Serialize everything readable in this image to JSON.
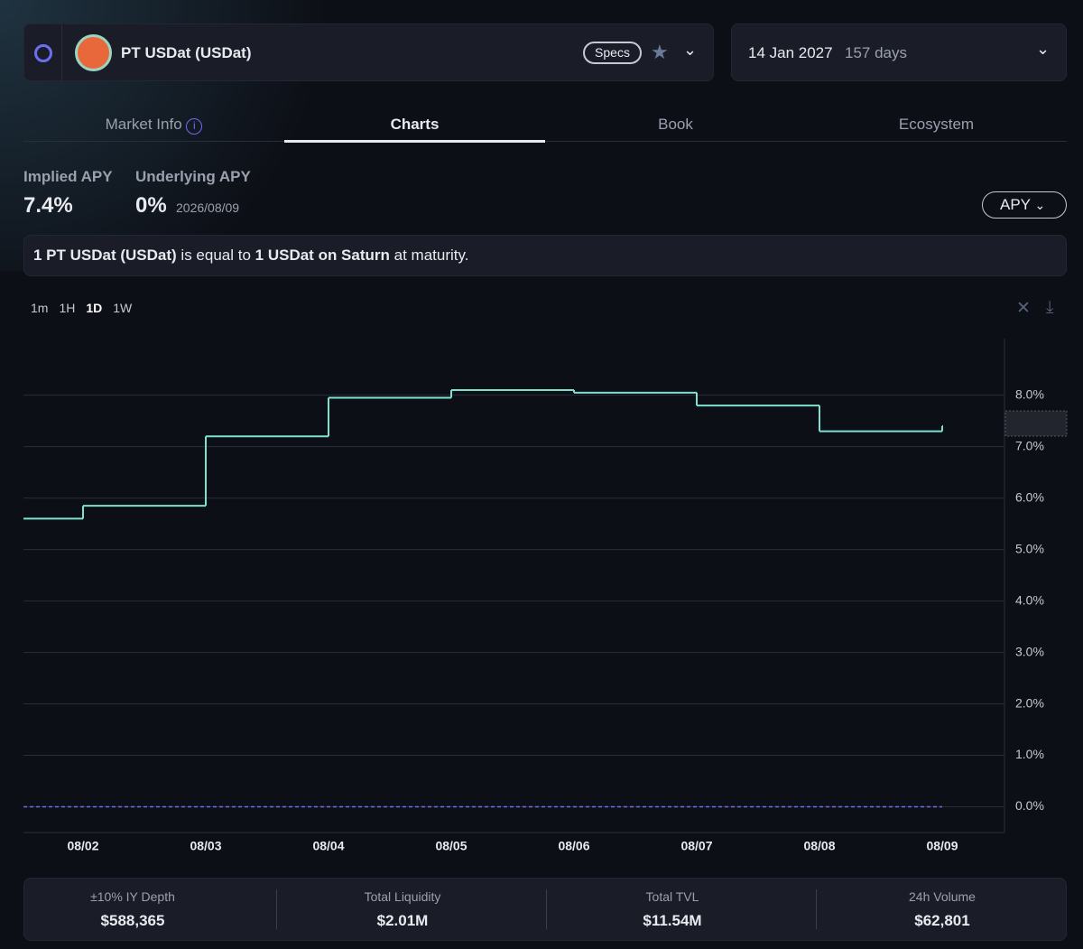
{
  "header": {
    "market": "PT USDat (USDat)",
    "specs": "Specs",
    "maturity": "14 Jan 2027",
    "days": "157 days"
  },
  "tabs": [
    "Market Info",
    "Charts",
    "Book",
    "Ecosystem"
  ],
  "stats": {
    "implied_value": "7.4%",
    "underlying_value": "0%",
    "underlying_date": "2026/08/09"
  },
  "apy_button": "APY",
  "note": [
    "1 PT USDat (USDat)",
    "is equal to",
    "1 USDat on Saturn",
    "at maturity."
  ],
  "timeframes": [
    "1m",
    "1H",
    "1D",
    "1W"
  ],
  "chart_data": {
    "type": "line",
    "step": true,
    "categories": [
      null,
      "08/02",
      "08/03",
      "08/04",
      "08/05",
      "08/06",
      "08/07",
      "08/08",
      "08/09"
    ],
    "series": [
      {
        "name": "Implied APY",
        "color": "#7ee0cf",
        "values": [
          5.6,
          5.85,
          7.2,
          7.95,
          8.1,
          8.05,
          7.8,
          7.3,
          7.4
        ]
      },
      {
        "name": "Underlying APY",
        "color": "#6a6cf0",
        "dashed": true,
        "values": [
          0,
          0,
          0,
          0,
          0,
          0,
          0,
          0,
          0
        ]
      }
    ],
    "ylim": [
      -0.5,
      9.1
    ],
    "yticks": [
      {
        "value": 0,
        "label": "0.0%"
      },
      {
        "value": 1,
        "label": "1.0%"
      },
      {
        "value": 2,
        "label": "2.0%"
      },
      {
        "value": 3,
        "label": "3.0%"
      },
      {
        "value": 4,
        "label": "4.0%"
      },
      {
        "value": 5,
        "label": "5.0%"
      },
      {
        "value": 6,
        "label": "6.0%"
      },
      {
        "value": 7,
        "label": "7.0%"
      },
      {
        "value": 8,
        "label": "8.0%"
      }
    ],
    "grid": true
  },
  "footer": [
    {
      "label": "±10% IY Depth",
      "value": "$588,365"
    },
    {
      "label": "Total Liquidity",
      "value": "$2.01M"
    },
    {
      "label": "Total TVL",
      "value": "$11.54M"
    },
    {
      "label": "24h Volume",
      "value": "$62,801"
    }
  ]
}
